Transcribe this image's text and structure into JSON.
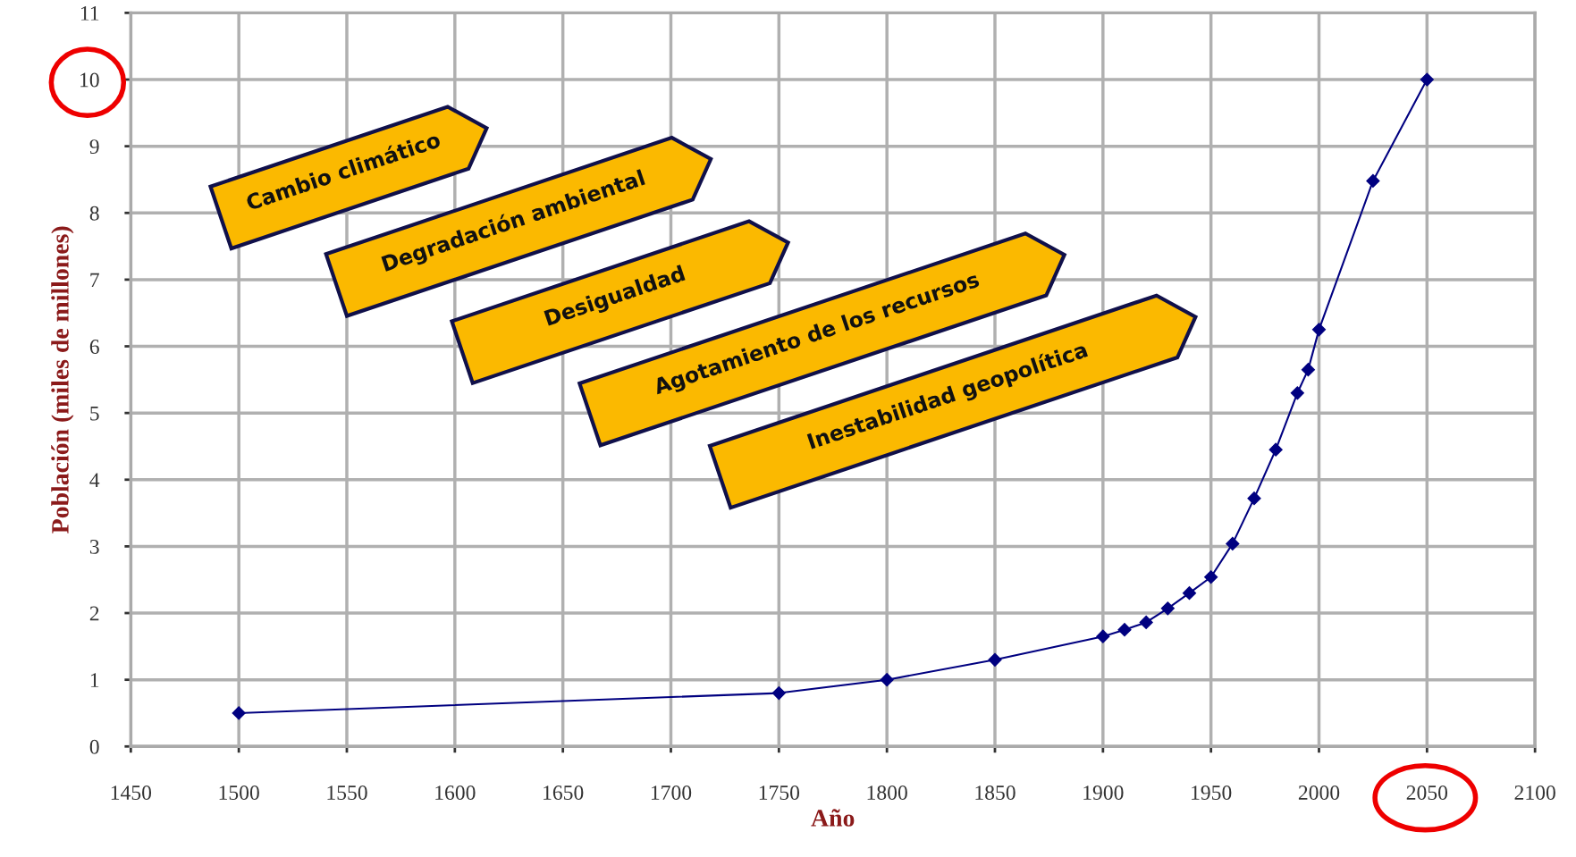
{
  "chart_data": {
    "type": "line",
    "xlabel": "Año",
    "ylabel": "Población (miles de millones)",
    "x": [
      1500,
      1750,
      1800,
      1850,
      1900,
      1910,
      1920,
      1930,
      1940,
      1950,
      1960,
      1970,
      1980,
      1990,
      1995,
      2000,
      2025,
      2050
    ],
    "series": [
      {
        "color": "#000080",
        "values": [
          0.5,
          0.8,
          1.0,
          1.3,
          1.65,
          1.75,
          1.86,
          2.07,
          2.3,
          2.54,
          3.04,
          3.72,
          4.45,
          5.3,
          5.65,
          6.25,
          8.48,
          10.0
        ]
      }
    ],
    "xlim": [
      1450,
      2100
    ],
    "xticks": [
      1450,
      1500,
      1550,
      1600,
      1650,
      1700,
      1750,
      1800,
      1850,
      1900,
      1950,
      2000,
      2050,
      2100
    ],
    "ylim": [
      0,
      11
    ],
    "yticks": [
      0,
      1,
      2,
      3,
      4,
      5,
      6,
      7,
      8,
      9,
      10,
      11
    ],
    "grid": true,
    "marker": "diamond",
    "line_style": "solid",
    "annotations": [
      "Cambio climático",
      "Degradación ambiental",
      "Desigualdad",
      "Agotamiento de los recursos",
      "Inestabilidad geopolítica"
    ]
  }
}
